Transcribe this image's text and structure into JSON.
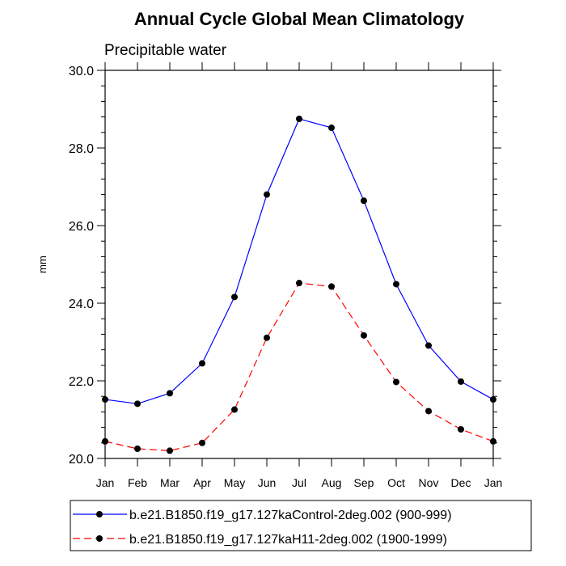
{
  "chart_data": {
    "type": "line",
    "title": "Annual Cycle Global Mean Climatology",
    "subtitle": "Precipitable water",
    "xlabel": "",
    "ylabel": "mm",
    "categories": [
      "Jan",
      "Feb",
      "Mar",
      "Apr",
      "May",
      "Jun",
      "Jul",
      "Aug",
      "Sep",
      "Oct",
      "Nov",
      "Dec",
      "Jan"
    ],
    "ylim": [
      20.0,
      30.0
    ],
    "yticks": [
      20.0,
      22.0,
      24.0,
      26.0,
      28.0,
      30.0
    ],
    "ytick_labels": [
      "20.0",
      "22.0",
      "24.0",
      "26.0",
      "28.0",
      "30.0"
    ],
    "yminor_step": 0.4,
    "grid": false,
    "legend_position": "bottom",
    "series": [
      {
        "name": "b.e21.B1850.f19_g17.127kaControl-2deg.002 (900-999)",
        "color": "#0000ff",
        "dash": "solid",
        "values": [
          21.52,
          21.41,
          21.68,
          22.45,
          24.16,
          26.8,
          28.75,
          28.52,
          26.64,
          24.49,
          22.91,
          21.98,
          21.52
        ]
      },
      {
        "name": "b.e21.B1850.f19_g17.127kaH11-2deg.002 (1900-1999)",
        "color": "#ff0000",
        "dash": "dashed",
        "values": [
          20.44,
          20.25,
          20.2,
          20.4,
          21.26,
          23.11,
          24.52,
          24.43,
          23.17,
          21.97,
          21.22,
          20.75,
          20.44
        ]
      }
    ]
  }
}
